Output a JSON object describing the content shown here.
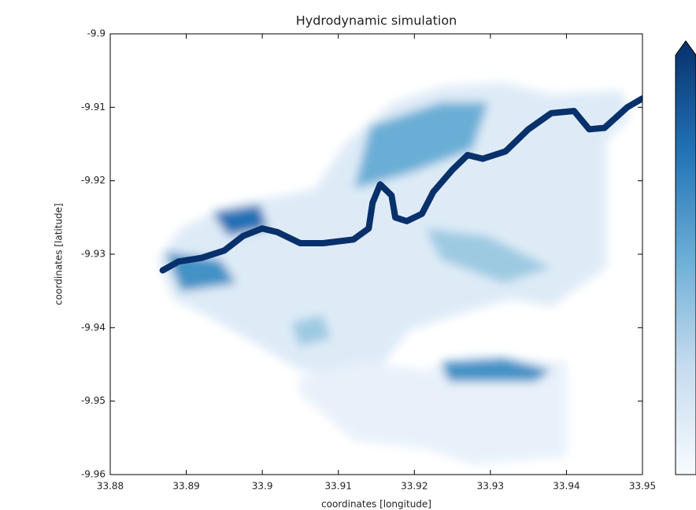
{
  "chart_data": {
    "type": "map",
    "title": "Hydrodynamic simulation",
    "xlabel": "coordinates [longitude]",
    "ylabel": "coordinates [latitude]",
    "xlim": [
      33.88,
      33.95
    ],
    "ylim": [
      -9.96,
      -9.9
    ],
    "xticks": [
      33.88,
      33.89,
      33.9,
      33.91,
      33.92,
      33.93,
      33.94,
      33.95
    ],
    "yticks": [
      -9.96,
      -9.95,
      -9.94,
      -9.93,
      -9.92,
      -9.91,
      -9.9
    ],
    "colorbar_colors": [
      "#f7fbff",
      "#c6dbef",
      "#6baed6",
      "#2171b5",
      "#08306b"
    ],
    "river": {
      "color": "#08306b",
      "x": [
        33.8869,
        33.889,
        33.892,
        33.895,
        33.8975,
        33.9,
        33.902,
        33.905,
        33.908,
        33.912,
        33.914,
        33.9145,
        33.9155,
        33.917,
        33.9175,
        33.919,
        33.921,
        33.9225,
        33.925,
        33.927,
        33.929,
        33.932,
        33.935,
        33.938,
        33.941,
        33.943,
        33.945,
        33.948,
        33.95
      ],
      "y": [
        -9.9322,
        -9.931,
        -9.9305,
        -9.9295,
        -9.9275,
        -9.9265,
        -9.927,
        -9.9285,
        -9.9285,
        -9.928,
        -9.9265,
        -9.923,
        -9.9205,
        -9.922,
        -9.925,
        -9.9255,
        -9.9245,
        -9.9215,
        -9.9185,
        -9.9165,
        -9.917,
        -9.916,
        -9.913,
        -9.9108,
        -9.9105,
        -9.913,
        -9.9128,
        -9.91,
        -9.9088
      ]
    }
  }
}
